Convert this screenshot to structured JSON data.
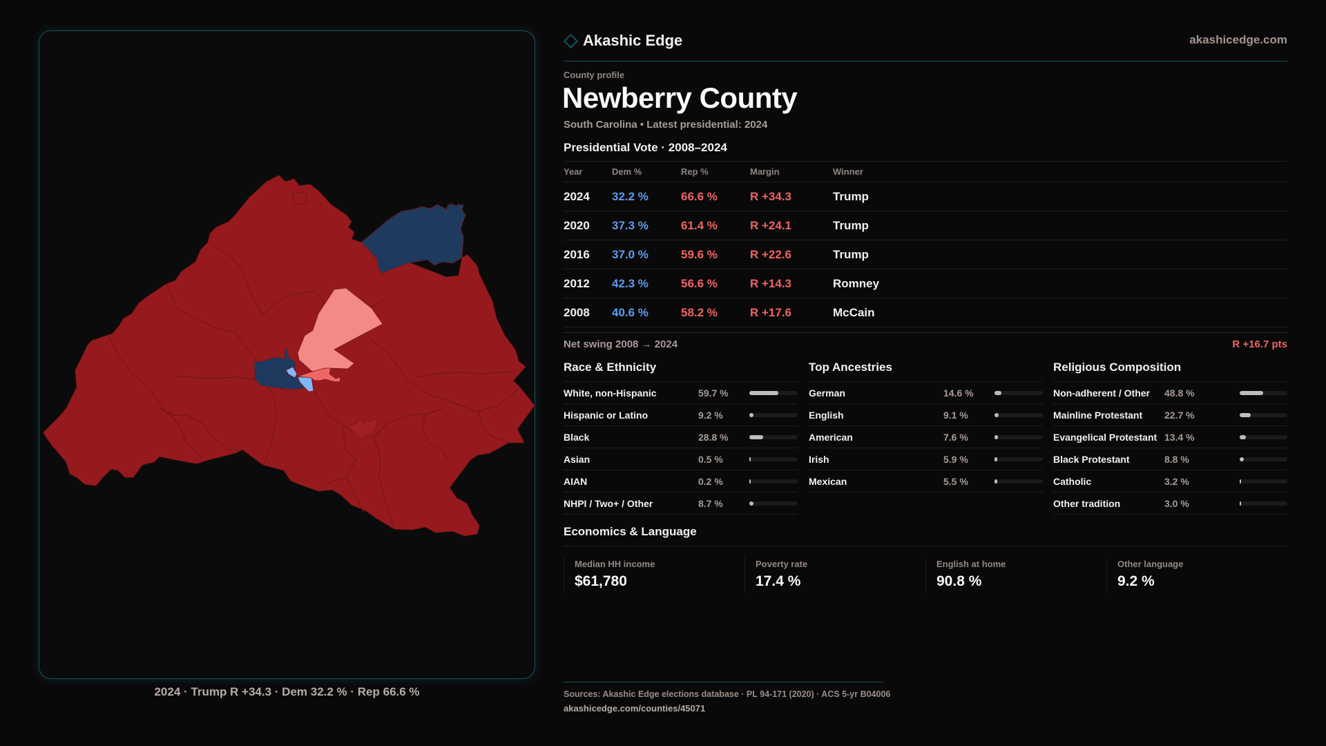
{
  "brand": {
    "name": "Akashic Edge",
    "logo_icon": "diamond-outline-icon",
    "site": "akashicedge.com"
  },
  "profile": {
    "kicker": "County profile",
    "title": "Newberry County",
    "subtitle": "South Carolina • Latest presidential: 2024"
  },
  "vote": {
    "title": "Presidential Vote · 2008–2024",
    "columns": [
      "Year",
      "Dem %",
      "Rep %",
      "Margin",
      "Winner"
    ],
    "rows": [
      {
        "year": "2024",
        "dem": "32.2 %",
        "rep": "66.6 %",
        "margin": "R +34.3",
        "winner": "Trump"
      },
      {
        "year": "2020",
        "dem": "37.3 %",
        "rep": "61.4 %",
        "margin": "R +24.1",
        "winner": "Trump"
      },
      {
        "year": "2016",
        "dem": "37.0 %",
        "rep": "59.6 %",
        "margin": "R +22.6",
        "winner": "Trump"
      },
      {
        "year": "2012",
        "dem": "42.3 %",
        "rep": "56.6 %",
        "margin": "R +14.3",
        "winner": "Romney"
      },
      {
        "year": "2008",
        "dem": "40.6 %",
        "rep": "58.2 %",
        "margin": "R +17.6",
        "winner": "McCain"
      }
    ],
    "swing_label": "Net swing 2008 → 2024",
    "swing_value": "R +16.7 pts"
  },
  "sections": [
    {
      "title": "Race & Ethnicity",
      "rows": [
        {
          "label": "White, non-Hispanic",
          "value": "59.7 %",
          "pct": 59.7
        },
        {
          "label": "Hispanic or Latino",
          "value": "9.2 %",
          "pct": 9.2
        },
        {
          "label": "Black",
          "value": "28.8 %",
          "pct": 28.8
        },
        {
          "label": "Asian",
          "value": "0.5 %",
          "pct": 0.5
        },
        {
          "label": "AIAN",
          "value": "0.2 %",
          "pct": 0.2
        },
        {
          "label": "NHPI / Two+ / Other",
          "value": "8.7 %",
          "pct": 8.7
        }
      ]
    },
    {
      "title": "Top Ancestries",
      "rows": [
        {
          "label": "German",
          "value": "14.6 %",
          "pct": 14.6
        },
        {
          "label": "English",
          "value": "9.1 %",
          "pct": 9.1
        },
        {
          "label": "American",
          "value": "7.6 %",
          "pct": 7.6
        },
        {
          "label": "Irish",
          "value": "5.9 %",
          "pct": 5.9
        },
        {
          "label": "Mexican",
          "value": "5.5 %",
          "pct": 5.5
        }
      ]
    },
    {
      "title": "Religious Composition",
      "rows": [
        {
          "label": "Non-adherent / Other",
          "value": "48.8 %",
          "pct": 48.8
        },
        {
          "label": "Mainline Protestant",
          "value": "22.7 %",
          "pct": 22.7
        },
        {
          "label": "Evangelical Protestant",
          "value": "13.4 %",
          "pct": 13.4
        },
        {
          "label": "Black Protestant",
          "value": "8.8 %",
          "pct": 8.8
        },
        {
          "label": "Catholic",
          "value": "3.2 %",
          "pct": 3.2
        },
        {
          "label": "Other tradition",
          "value": "3.0 %",
          "pct": 3.0
        }
      ]
    }
  ],
  "economics": {
    "title": "Economics & Language",
    "stats": [
      {
        "label": "Median HH income",
        "value": "$61,780"
      },
      {
        "label": "Poverty rate",
        "value": "17.4 %"
      },
      {
        "label": "English at home",
        "value": "90.8 %"
      },
      {
        "label": "Other language",
        "value": "9.2 %"
      }
    ]
  },
  "map": {
    "caption": "2024 · Trump R +34.3 · Dem 32.2 % · Rep 66.6 %",
    "colors": {
      "rep_strong": "#961a1d",
      "rep_medium": "#a11f22",
      "rep_lean": "#f06565",
      "rep_tilt": "#f48a88",
      "dem_strong": "#1e3a5f",
      "dem_lean": "#80b8fa",
      "border": "#7a1517"
    }
  },
  "footer": {
    "sources": "Sources: Akashic Edge elections database · PL 94-171 (2020) · ACS 5-yr B04006",
    "url": "akashicedge.com/counties/45071"
  },
  "colors": {
    "dem_text": "#5d9bf0",
    "rep_text": "#f06464",
    "accent_line": "#17525c",
    "bar_fill": "#bdbdbd"
  }
}
